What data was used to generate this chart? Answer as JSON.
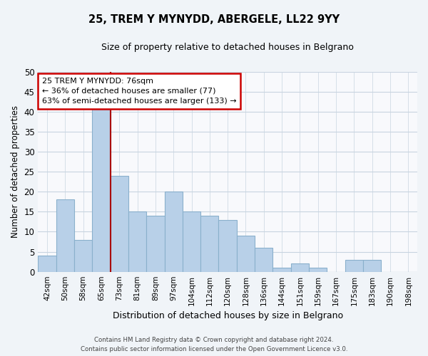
{
  "title": "25, TREM Y MYNYDD, ABERGELE, LL22 9YY",
  "subtitle": "Size of property relative to detached houses in Belgrano",
  "xlabel": "Distribution of detached houses by size in Belgrano",
  "ylabel": "Number of detached properties",
  "bar_labels": [
    "42sqm",
    "50sqm",
    "58sqm",
    "65sqm",
    "73sqm",
    "81sqm",
    "89sqm",
    "97sqm",
    "104sqm",
    "112sqm",
    "120sqm",
    "128sqm",
    "136sqm",
    "144sqm",
    "151sqm",
    "159sqm",
    "167sqm",
    "175sqm",
    "183sqm",
    "190sqm",
    "198sqm"
  ],
  "bar_values": [
    4,
    18,
    8,
    41,
    24,
    15,
    14,
    20,
    15,
    14,
    13,
    9,
    6,
    1,
    2,
    1,
    0,
    3,
    3,
    0,
    0
  ],
  "bar_color": "#b8d0e8",
  "bar_edge_color": "#8ab0cc",
  "highlight_color": "#aa0000",
  "annotation_text_line1": "25 TREM Y MYNYDD: 76sqm",
  "annotation_text_line2": "← 36% of detached houses are smaller (77)",
  "annotation_text_line3": "63% of semi-detached houses are larger (133) →",
  "annotation_box_color": "#ffffff",
  "annotation_box_edge": "#cc0000",
  "ylim": [
    0,
    50
  ],
  "yticks": [
    0,
    5,
    10,
    15,
    20,
    25,
    30,
    35,
    40,
    45,
    50
  ],
  "footer_line1": "Contains HM Land Registry data © Crown copyright and database right 2024.",
  "footer_line2": "Contains public sector information licensed under the Open Government Licence v3.0.",
  "bg_color": "#f0f4f8",
  "plot_bg_color": "#f8f9fc",
  "grid_color": "#c8d4e0"
}
